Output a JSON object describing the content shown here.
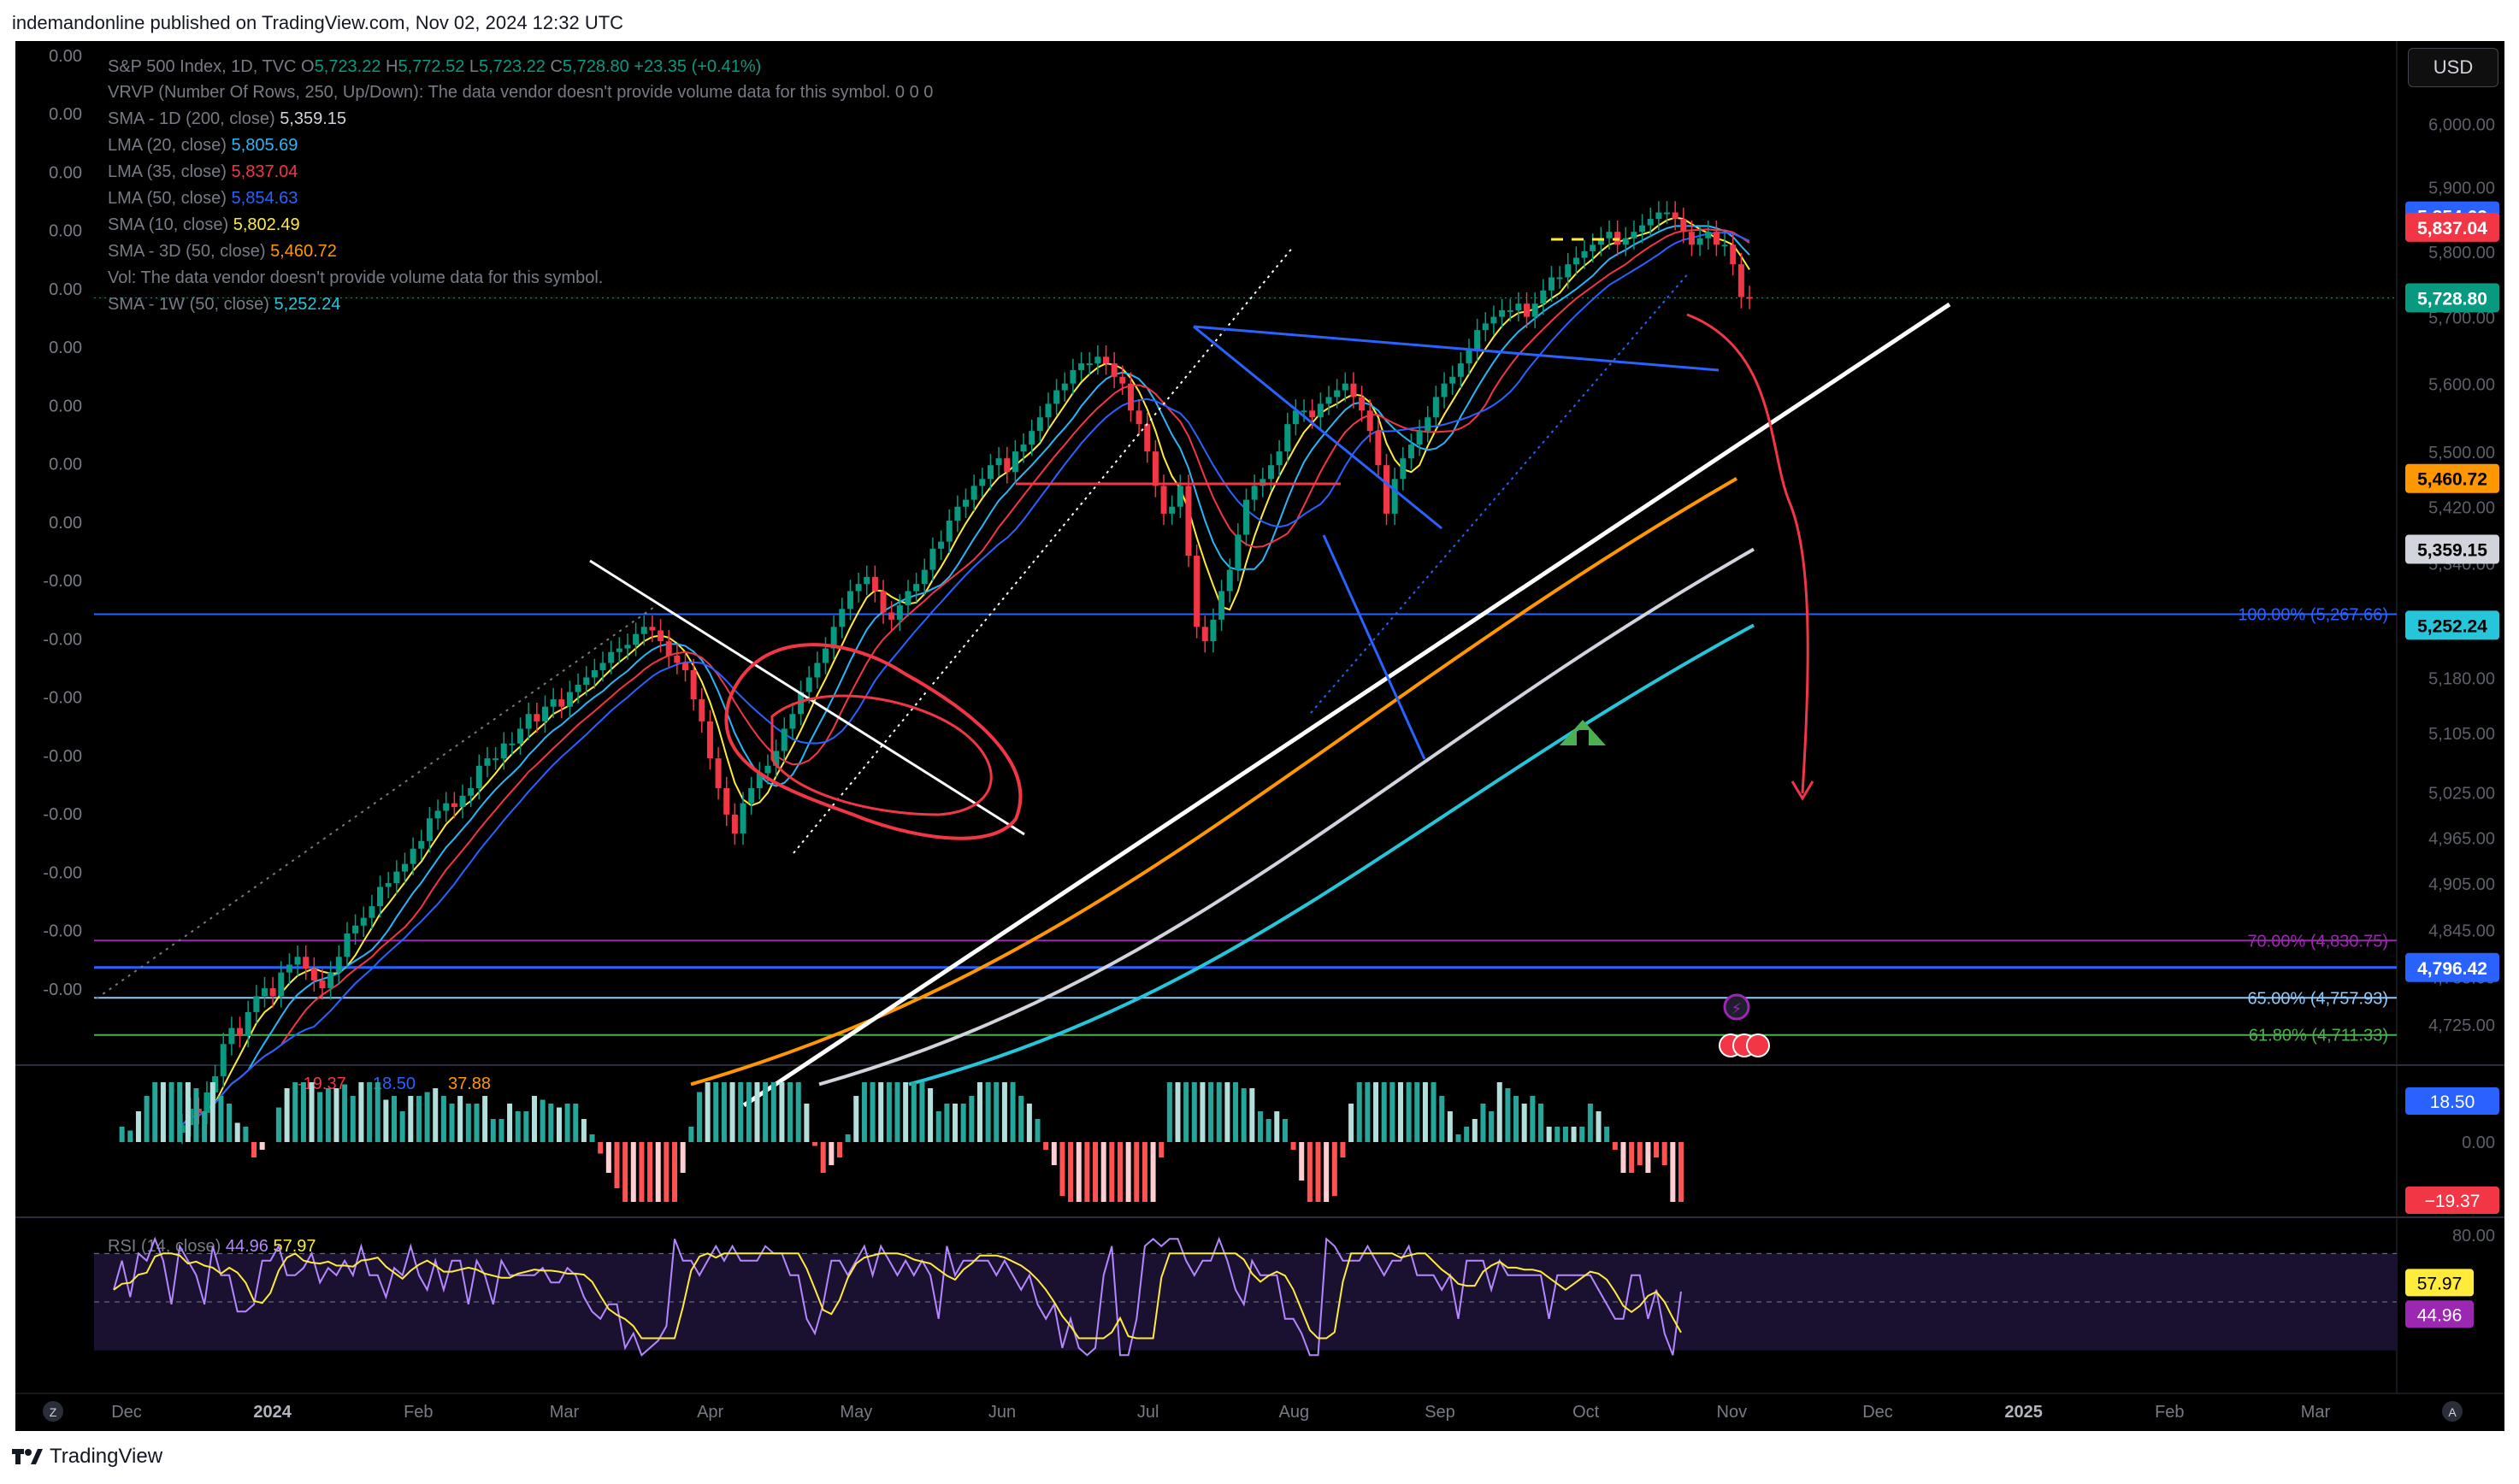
{
  "header": {
    "text": "indemandonline published on TradingView.com, Nov 02, 2024 12:32 UTC"
  },
  "footer": {
    "brand": "TradingView"
  },
  "currency": "USD",
  "legend": {
    "main": {
      "name": "S&P 500 Index, 1D, TVC",
      "o": "5,723.22",
      "h": "5,772.52",
      "l": "5,723.22",
      "c": "5,728.80",
      "chg": "+23.35 (+0.41%)"
    },
    "lines": [
      {
        "name": "VRVP (Number Of Rows, 250, Up/Down): The data vendor doesn't provide volume data for this symbol.  0  0  0",
        "value": "",
        "color": "#787b86"
      },
      {
        "name": "SMA - 1D (200, close)",
        "value": "5,359.15",
        "color": "#d1d4dc"
      },
      {
        "name": "LMA (20, close)",
        "value": "5,805.69",
        "color": "#29b6f6"
      },
      {
        "name": "LMA (35, close)",
        "value": "5,837.04",
        "color": "#f23645"
      },
      {
        "name": "LMA (50, close)",
        "value": "5,854.63",
        "color": "#2962ff"
      },
      {
        "name": "SMA (10, close)",
        "value": "5,802.49",
        "color": "#ffeb3b"
      },
      {
        "name": "SMA - 3D (50, close)",
        "value": "5,460.72",
        "color": "#ff9800"
      },
      {
        "name": "Vol: The data vendor doesn't provide volume data for this symbol.",
        "value": "",
        "color": "#787b86"
      },
      {
        "name": "SMA - 1W (50, close)",
        "value": "5,252.24",
        "color": "#26c6da"
      }
    ]
  },
  "left_labels": [
    "0.00",
    "0.00",
    "0.00",
    "0.00",
    "0.00",
    "0.00",
    "0.00",
    "0.00",
    "0.00",
    "-0.00",
    "-0.00",
    "-0.00",
    "-0.00",
    "-0.00",
    "-0.00",
    "-0.00",
    "-0.00"
  ],
  "fib_labels": [
    {
      "text": "100.00% (5,267.66)",
      "value": 5267.66,
      "color": "#2962ff"
    },
    {
      "text": "70.00% (4,830.75)",
      "value": 4830.75,
      "color": "#9c27b0"
    },
    {
      "text": "65.00% (4,757.93)",
      "value": 4757.93,
      "color": "#90caf9"
    },
    {
      "text": "61.80% (4,711.33)",
      "value": 4711.33,
      "color": "#4caf50"
    }
  ],
  "price_badges": [
    {
      "text": "5,854.63",
      "value": 5854.63,
      "bg": "#2962ff",
      "fg": "#ffffff"
    },
    {
      "text": "5,837.04",
      "value": 5837.04,
      "bg": "#f23645",
      "fg": "#ffffff"
    },
    {
      "text": "5,728.80",
      "value": 5728.8,
      "bg": "#089981",
      "fg": "#ffffff"
    },
    {
      "text": "5,460.72",
      "value": 5460.72,
      "bg": "#ff9800",
      "fg": "#000000"
    },
    {
      "text": "5,359.15",
      "value": 5359.15,
      "bg": "#d1d4dc",
      "fg": "#000000"
    },
    {
      "text": "5,252.24",
      "value": 5252.24,
      "bg": "#26c6da",
      "fg": "#000000"
    },
    {
      "text": "4,796.42",
      "value": 4796.42,
      "bg": "#2962ff",
      "fg": "#ffffff"
    }
  ],
  "macd": {
    "label_values": [
      "-19.37",
      "18.50",
      "37.88"
    ],
    "zero": "0.00",
    "badge_pos": "18.50",
    "badge_neg": "−19.37"
  },
  "rsi": {
    "label": "RSI (14, close)",
    "rsi_value": "44.96",
    "ma_value": "57.97",
    "axis_top": "80.00",
    "upper_band": 70,
    "lower_band": 30
  },
  "chart_data": {
    "type": "candlestick",
    "title": "S&P 500 Index, 1D, TVC",
    "x_tick_labels": [
      "Dec",
      "2024",
      "Feb",
      "Mar",
      "Apr",
      "May",
      "Jun",
      "Jul",
      "Aug",
      "Sep",
      "Oct",
      "Nov",
      "Dec",
      "2025",
      "Feb",
      "Mar"
    ],
    "y_tick_labels": [
      "6,000.00",
      "5,900.00",
      "5,800.00",
      "5,700.00",
      "5,600.00",
      "5,500.00",
      "5,420.00",
      "5,340.00",
      "5,260.00",
      "5,180.00",
      "5,105.00",
      "5,025.00",
      "4,965.00",
      "4,905.00",
      "4,845.00",
      "4,785.00",
      "4,725.00"
    ],
    "ylim": [
      4695,
      6080
    ],
    "y_scale": "log",
    "ohlc_last": {
      "open": 5723.22,
      "high": 5772.52,
      "low": 5723.22,
      "close": 5728.8
    },
    "close_series": [
      4600,
      4620,
      4615,
      4640,
      4660,
      4700,
      4720,
      4710,
      4740,
      4760,
      4770,
      4760,
      4790,
      4800,
      4810,
      4795,
      4780,
      4770,
      4790,
      4810,
      4840,
      4850,
      4860,
      4875,
      4900,
      4905,
      4920,
      4930,
      4950,
      4960,
      4990,
      5000,
      5010,
      5005,
      5020,
      5030,
      5060,
      5070,
      5070,
      5090,
      5090,
      5110,
      5130,
      5120,
      5140,
      5150,
      5140,
      5160,
      5170,
      5180,
      5190,
      5200,
      5215,
      5220,
      5225,
      5240,
      5250,
      5245,
      5230,
      5210,
      5200,
      5190,
      5150,
      5120,
      5070,
      5030,
      4995,
      4970,
      5010,
      5030,
      5050,
      5060,
      5080,
      5110,
      5130,
      5160,
      5180,
      5200,
      5220,
      5250,
      5275,
      5300,
      5310,
      5320,
      5300,
      5270,
      5260,
      5280,
      5300,
      5310,
      5330,
      5360,
      5370,
      5400,
      5420,
      5430,
      5450,
      5460,
      5480,
      5490,
      5470,
      5500,
      5510,
      5530,
      5550,
      5570,
      5590,
      5600,
      5620,
      5630,
      5630,
      5640,
      5630,
      5610,
      5600,
      5560,
      5540,
      5500,
      5450,
      5410,
      5420,
      5450,
      5350,
      5250,
      5230,
      5260,
      5300,
      5330,
      5380,
      5430,
      5450,
      5460,
      5480,
      5500,
      5540,
      5560,
      5560,
      5550,
      5570,
      5580,
      5590,
      5600,
      5580,
      5560,
      5530,
      5480,
      5410,
      5460,
      5490,
      5510,
      5530,
      5550,
      5580,
      5600,
      5610,
      5630,
      5650,
      5680,
      5690,
      5700,
      5710,
      5710,
      5720,
      5700,
      5720,
      5740,
      5760,
      5760,
      5780,
      5790,
      5800,
      5810,
      5820,
      5830,
      5810,
      5820,
      5830,
      5840,
      5850,
      5860,
      5860,
      5850,
      5830,
      5810,
      5820,
      5830,
      5810,
      5810,
      5780,
      5730,
      5728.8
    ],
    "moving_averages": [
      {
        "name": "SMA - 3D (50, close)",
        "value": 5460.72
      },
      {
        "name": "SMA - 1D (200, close)",
        "value": 5359.15
      },
      {
        "name": "SMA - 1W (50, close)",
        "value": 5252.24
      }
    ],
    "horizontal_levels": [
      5267.66,
      4830.75,
      4796.42,
      4757.93,
      4711.33
    ],
    "grid": false
  }
}
